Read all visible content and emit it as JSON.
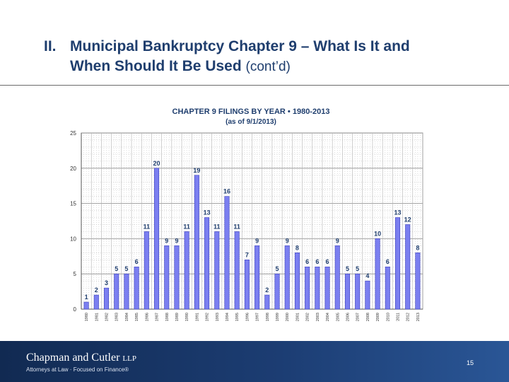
{
  "slide": {
    "title_number": "II.",
    "title_line1": "Municipal Bankruptcy Chapter 9 – What Is It and",
    "title_line2": "When Should It Be Used",
    "title_suffix": "(cont’d)"
  },
  "footer": {
    "firm_name": "Chapman and Cutler",
    "firm_suffix": "LLP",
    "tagline": "Attorneys at Law · Focused on Finance®",
    "page_number": "15"
  },
  "chart_data": {
    "type": "bar",
    "title": "CHAPTER 9 FILINGS BY YEAR • 1980-2013",
    "subtitle": "(as of 9/1/2013)",
    "xlabel": "",
    "ylabel": "",
    "ylim": [
      0,
      25
    ],
    "yticks": [
      0,
      5,
      10,
      15,
      20,
      25
    ],
    "grid": true,
    "bar_color": "#7b7ff0",
    "bar_edge_color": "#3a3fbf",
    "categories": [
      "1980",
      "1981",
      "1982",
      "1983",
      "1984",
      "1985",
      "1986",
      "1987",
      "1988",
      "1989",
      "1990",
      "1991",
      "1992",
      "1993",
      "1994",
      "1995",
      "1996",
      "1997",
      "1998",
      "1999",
      "2000",
      "2001",
      "2002",
      "2003",
      "2004",
      "2005",
      "2006",
      "2007",
      "2008",
      "2009",
      "2010",
      "2011",
      "2012",
      "2013"
    ],
    "values": [
      1,
      2,
      3,
      5,
      5,
      6,
      11,
      20,
      9,
      9,
      11,
      19,
      13,
      11,
      16,
      11,
      7,
      9,
      2,
      5,
      9,
      8,
      6,
      6,
      6,
      9,
      5,
      5,
      4,
      10,
      6,
      13,
      12,
      8
    ]
  }
}
